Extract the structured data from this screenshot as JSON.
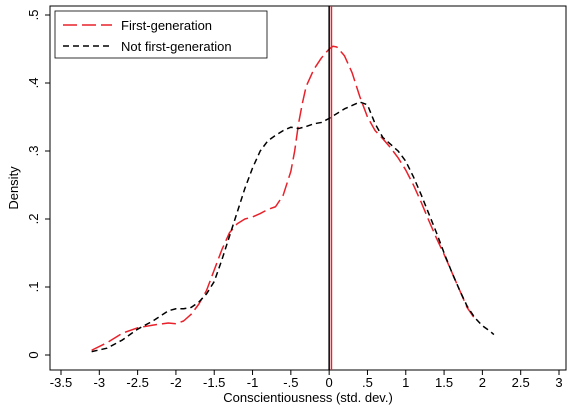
{
  "chart_data": {
    "type": "line",
    "title": "",
    "xlabel": "Conscientiousness (std. dev.)",
    "ylabel": "Density",
    "xlim": [
      -3.5,
      3.0
    ],
    "ylim": [
      0,
      0.5
    ],
    "x_ticks": [
      -3.5,
      -3,
      -2.5,
      -2,
      -1.5,
      -1,
      -0.5,
      0,
      0.5,
      1,
      1.5,
      2,
      2.5,
      3
    ],
    "x_tick_labels": [
      "-3.5",
      "-3",
      "-2.5",
      "-2",
      "-1.5",
      "-1",
      "-.5",
      "0",
      ".5",
      "1",
      "1.5",
      "2",
      "2.5",
      "3"
    ],
    "y_ticks": [
      0,
      0.1,
      0.2,
      0.3,
      0.4,
      0.5
    ],
    "y_tick_labels": [
      "0",
      ".1",
      ".2",
      ".3",
      ".4",
      ".5"
    ],
    "grid": false,
    "legend_position": "top-left",
    "series": [
      {
        "name": "First-generation",
        "color": "#e8212a",
        "dash": "long-dash",
        "vline_x": 0.03,
        "points": [
          [
            -3.1,
            0.007
          ],
          [
            -2.9,
            0.018
          ],
          [
            -2.7,
            0.032
          ],
          [
            -2.5,
            0.04
          ],
          [
            -2.3,
            0.044
          ],
          [
            -2.1,
            0.047
          ],
          [
            -2.0,
            0.046
          ],
          [
            -1.9,
            0.05
          ],
          [
            -1.8,
            0.06
          ],
          [
            -1.7,
            0.075
          ],
          [
            -1.6,
            0.095
          ],
          [
            -1.5,
            0.125
          ],
          [
            -1.4,
            0.155
          ],
          [
            -1.3,
            0.18
          ],
          [
            -1.2,
            0.193
          ],
          [
            -1.1,
            0.2
          ],
          [
            -1.0,
            0.203
          ],
          [
            -0.9,
            0.208
          ],
          [
            -0.8,
            0.214
          ],
          [
            -0.7,
            0.218
          ],
          [
            -0.6,
            0.235
          ],
          [
            -0.5,
            0.27
          ],
          [
            -0.45,
            0.3
          ],
          [
            -0.4,
            0.34
          ],
          [
            -0.35,
            0.37
          ],
          [
            -0.3,
            0.395
          ],
          [
            -0.2,
            0.42
          ],
          [
            -0.1,
            0.437
          ],
          [
            0.0,
            0.45
          ],
          [
            0.05,
            0.454
          ],
          [
            0.1,
            0.453
          ],
          [
            0.2,
            0.44
          ],
          [
            0.3,
            0.415
          ],
          [
            0.4,
            0.38
          ],
          [
            0.5,
            0.35
          ],
          [
            0.6,
            0.33
          ],
          [
            0.7,
            0.318
          ],
          [
            0.8,
            0.305
          ],
          [
            0.9,
            0.29
          ],
          [
            1.0,
            0.272
          ],
          [
            1.1,
            0.25
          ],
          [
            1.2,
            0.225
          ],
          [
            1.3,
            0.198
          ],
          [
            1.4,
            0.172
          ],
          [
            1.5,
            0.148
          ],
          [
            1.6,
            0.122
          ],
          [
            1.7,
            0.096
          ],
          [
            1.8,
            0.07
          ],
          [
            1.92,
            0.05
          ]
        ]
      },
      {
        "name": "Not first-generation",
        "color": "#000000",
        "dash": "short-dash",
        "vline_x": 0.0,
        "points": [
          [
            -3.1,
            0.005
          ],
          [
            -2.9,
            0.01
          ],
          [
            -2.7,
            0.022
          ],
          [
            -2.5,
            0.038
          ],
          [
            -2.3,
            0.05
          ],
          [
            -2.1,
            0.065
          ],
          [
            -2.0,
            0.068
          ],
          [
            -1.9,
            0.068
          ],
          [
            -1.8,
            0.07
          ],
          [
            -1.7,
            0.078
          ],
          [
            -1.6,
            0.09
          ],
          [
            -1.5,
            0.108
          ],
          [
            -1.4,
            0.14
          ],
          [
            -1.3,
            0.175
          ],
          [
            -1.2,
            0.21
          ],
          [
            -1.1,
            0.245
          ],
          [
            -1.0,
            0.275
          ],
          [
            -0.9,
            0.3
          ],
          [
            -0.8,
            0.315
          ],
          [
            -0.7,
            0.323
          ],
          [
            -0.6,
            0.33
          ],
          [
            -0.5,
            0.335
          ],
          [
            -0.4,
            0.333
          ],
          [
            -0.3,
            0.336
          ],
          [
            -0.2,
            0.34
          ],
          [
            -0.1,
            0.342
          ],
          [
            0.0,
            0.348
          ],
          [
            0.1,
            0.355
          ],
          [
            0.2,
            0.362
          ],
          [
            0.3,
            0.367
          ],
          [
            0.4,
            0.372
          ],
          [
            0.5,
            0.368
          ],
          [
            0.6,
            0.34
          ],
          [
            0.7,
            0.32
          ],
          [
            0.8,
            0.31
          ],
          [
            0.9,
            0.3
          ],
          [
            1.0,
            0.285
          ],
          [
            1.1,
            0.262
          ],
          [
            1.2,
            0.236
          ],
          [
            1.3,
            0.208
          ],
          [
            1.4,
            0.18
          ],
          [
            1.5,
            0.15
          ],
          [
            1.6,
            0.122
          ],
          [
            1.7,
            0.096
          ],
          [
            1.8,
            0.072
          ],
          [
            1.9,
            0.055
          ],
          [
            2.0,
            0.043
          ],
          [
            2.1,
            0.035
          ],
          [
            2.15,
            0.03
          ]
        ]
      }
    ]
  }
}
